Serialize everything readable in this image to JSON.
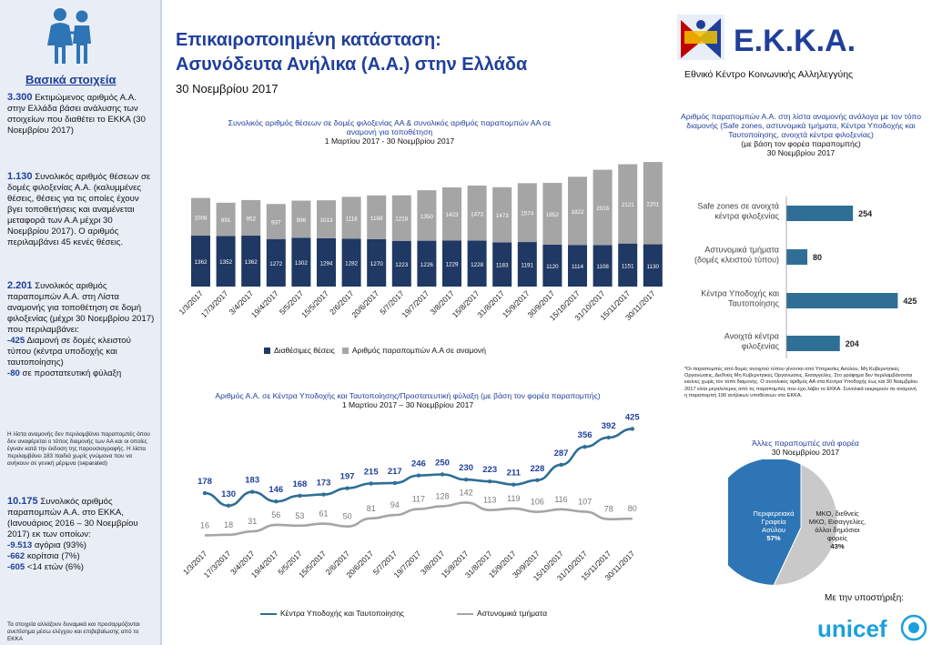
{
  "sidebar": {
    "heading": "Βασικά στοιχεία",
    "fact1_num": "3.300",
    "fact1_text": "Εκτιμώμενος αριθμός Α.Α. στην Ελλάδα βάσει ανάλυσης των στοιχείων που διαθέτει το ΕΚΚΑ (30 Νοεμβρίου 2017)",
    "fact2_num": "1.130",
    "fact2_text": "Συνολικός αριθμός θέσεων σε δομές φιλοξενίας Α.Α. (καλυμμένες θέσεις, θέσεις για τις οποίες έχουν βγει τοποθετήσεις και αναμένεται μεταφορά των Α.Α μέχρι 30 Νοεμβρίου 2017). Ο αριθμός περιλαμβάνει 45 κενές θέσεις.",
    "fact3_num": "2.201",
    "fact3_text": "Συνολικός αριθμός παραπομπών Α.Α. στη Λίστα αναμονής για τοποθέτηση σε δομή φιλοξενίας (μέχρι 30 Νοεμβρίου 2017) που περιλαμβάνει:",
    "fact3_sub1": "-425",
    "fact3_sub1_text": "Διαμονή σε δομές κλειστού τύπου (κέντρα υποδοχής και ταυτοποίησης)",
    "fact3_sub2": "-80",
    "fact3_sub2_text": "σε προστατευτική φύλαξη",
    "small_note": "Η λίστα αναμονής δεν περιλαμβάνει παραπομπές όπου δεν αναφέρεται ο τόπος διαμονής των ΑΑ και οι οποίες έγιναν κατά την έκδοση της παρουσιαγραφής. Η λίστα περιλαμβάνει 183 παιδιά χωρίς γνώμονα που να ανήκουν σε γενική μέριμνα (separated)",
    "fact4_num": "10.175",
    "fact4_text": "Συνολικός αριθμός παραπομπών Α.Α. στο ΕΚΚΑ, (Ιανουάριος 2016 – 30 Νοεμβρίου 2017) εκ των οποίων:",
    "fact4_sub1": "-9.513",
    "fact4_sub1_text": "αγόρια (93%)",
    "fact4_sub2": "-662",
    "fact4_sub2_text": "κορίτσια (7%)",
    "fact4_sub3": "-605",
    "fact4_sub3_text": "<14 ετών (6%)",
    "footer_note": "Τα στοιχεία αλλάζουν δυναμικά και προσαρμόζονται ανεπίσημα μέσω ελέγχου και επιβεβαίωσης από το ΕΚΚΑ"
  },
  "header": {
    "title_line1": "Επικαιροποιημένη κατάσταση:",
    "title_line2": "Ασυνόδευτα Ανήλικα (Α.Α.) στην Ελλάδα",
    "date": "30 Νοεμβρίου 2017"
  },
  "logo": {
    "name": "Ε.Κ.Κ.Α.",
    "subtitle": "Εθνικό Κέντρο Κοινωνικής Αλληλεγγύης"
  },
  "support": {
    "label": "Με την υποστήριξη:",
    "org": "unicef"
  },
  "colors": {
    "navy": "#1f3864",
    "gray": "#a5a5a5",
    "teal": "#2e75b6",
    "steel": "#2f6f96",
    "blue_text": "#1f3f9a"
  },
  "chart_data": [
    {
      "id": "stacked",
      "type": "bar",
      "title": "Συνολικός αριθμός θέσεων σε δομές φιλοξενίας ΑΑ & συνολικός αριθμός παραπομπών ΑΑ σε αναμονή για τοποθέτηση",
      "subtitle": "1 Μαρτίου 2017 - 30 Νοεμβρίου 2017",
      "categories": [
        "1/3/2017",
        "17/3/2017",
        "3/4/2017",
        "19/4/2017",
        "5/5/2017",
        "15/5/2017",
        "2/6/2017",
        "20/6/2017",
        "5/7/2017",
        "19/7/2017",
        "3/8/2017",
        "15/8/2017",
        "31/8/2017",
        "15/9/2017",
        "30/9/2017",
        "15/10/2017",
        "31/10/2017",
        "15/11/2017",
        "30/11/2017"
      ],
      "series": [
        {
          "name": "Διαθέσιμες θέσεις",
          "values": [
            1362,
            1352,
            1362,
            1272,
            1302,
            1294,
            1282,
            1270,
            1223,
            1226,
            1229,
            1228,
            1183,
            1191,
            1120,
            1114,
            1108,
            1151,
            1130
          ]
        },
        {
          "name": "Αριθμός παραπομπών Α.Α σε αναμονή",
          "values": [
            1008,
            891,
            952,
            937,
            996,
            1013,
            1118,
            1169,
            1218,
            1350,
            1423,
            1473,
            1473,
            1574,
            1652,
            1822,
            2016,
            2121,
            2201
          ]
        }
      ],
      "stacked": true,
      "legend": "bottom"
    },
    {
      "id": "line",
      "type": "line",
      "title": "Αριθμός Α.Α. σε Κέντρα Υποδοχής και Ταυτοποίησης/Προστατευτική φύλαξη (με βάση τον φορέα παραπομπής)",
      "subtitle": "1 Μαρτίου 2017 – 30 Νοεμβρίου 2017",
      "categories": [
        "1/3/2017",
        "17/3/2017",
        "3/4/2017",
        "19/4/2017",
        "5/5/2017",
        "15/5/2017",
        "2/6/2017",
        "20/6/2017",
        "5/7/2017",
        "19/7/2017",
        "3/8/2017",
        "15/8/2017",
        "31/8/2017",
        "15/9/2017",
        "30/9/2017",
        "15/10/2017",
        "31/10/2017",
        "15/11/2017",
        "30/11/2017"
      ],
      "series": [
        {
          "name": "Κέντρα Υποδοχής και Ταυτοποίησης",
          "values": [
            178,
            130,
            183,
            146,
            168,
            173,
            197,
            215,
            217,
            246,
            250,
            230,
            223,
            211,
            228,
            287,
            356,
            392,
            425
          ]
        },
        {
          "name": "Αστυνομικά τμήματα",
          "values": [
            16,
            18,
            31,
            56,
            53,
            61,
            50,
            81,
            94,
            117,
            128,
            142,
            113,
            119,
            106,
            116,
            107,
            78,
            80
          ]
        }
      ],
      "legend": "bottom"
    },
    {
      "id": "hbar",
      "type": "bar",
      "orientation": "horizontal",
      "title": "Αριθμός παραπομπών Α.Α. στη λίστα αναμονής ανάλογα με τον τόπο διαμονής (Safe zones, αστυνομικά τμήματα, Κέντρα Υποδοχής και Ταυτοποίησης, ανοιχτά κέντρα φιλοξενίας)",
      "subtitle": "(με βάση τον φορέα παραπομπής)",
      "date": "30 Νοεμβρίου 2017",
      "categories": [
        "Safe zones σε ανοιχτά κέντρα φιλοξενίας",
        "Αστυνομικά τμήματα (δομές κλειστού τύπου)",
        "Κέντρα Υποδοχής και Ταυτοποίησης",
        "Ανοιχτά κέντρα φιλοξενίας"
      ],
      "values": [
        254,
        80,
        425,
        204
      ]
    },
    {
      "id": "pie",
      "type": "pie",
      "title": "Άλλες παραπομπές ανά φορέα",
      "date": "30 Νοεμβρίου 2017",
      "slices": [
        {
          "label": "Περιφερειακά Γραφεία Ασύλου",
          "pct": "57%",
          "value": 57
        },
        {
          "label": "ΜΚΟ, διεθνείς ΜΚΟ, Εισαγγελίες, άλλοι δημόσιοι φορείς",
          "pct": "43%",
          "value": 43
        }
      ]
    }
  ],
  "note": "*Οι παραπομπές από δομές ανοιχτού τύπου γίνονται από Υπηρεσίες Ασύλου, Μη Κυβερνητικές Οργανώσεις, Διεθνείς Μη Κυβερνητικές Οργανώσεις, Εισαγγελίες. Στο γράφημα δεν περιλαμβάνονται εκείνες χωρίς τον τόπο διαμονής. Ο συνολικός αριθμός ΑΑ στα Κέντρα Υποδοχής έως και 30 Νοεμβρίου 2017 είναι μεγαλύτερος από τις παραπομπές που έχει λάβει το ΕΚΚΑ. Συνολικά εκκρεμούν σε αναμονή η παραπομπή 190 ανήλικων υποθέσεων στο ΕΚΚΑ."
}
